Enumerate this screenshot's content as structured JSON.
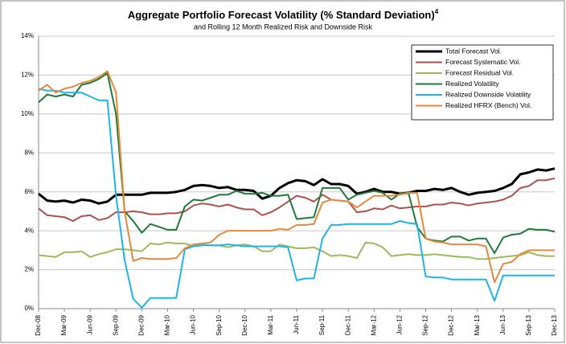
{
  "chart_data": {
    "type": "line",
    "title": "Aggregate Portfolio Forecast Volatility (% Standard Deviation)",
    "title_superscript": "4",
    "subtitle": "and Rolling 12 Month Realized Risk and Downside Risk",
    "categories": [
      "Dec-08",
      null,
      null,
      "Mar-09",
      null,
      null,
      "Jun-09",
      null,
      null,
      "Sep-09",
      null,
      null,
      "Dec-09",
      null,
      null,
      "Mar-10",
      null,
      null,
      "Jun-10",
      null,
      null,
      "Sep-10",
      null,
      null,
      "Dec-10",
      null,
      null,
      "Mar-11",
      null,
      null,
      "Jun-11",
      null,
      null,
      "Sep-11",
      null,
      null,
      "Dec-11",
      null,
      null,
      "Mar-12",
      null,
      null,
      "Jun-12",
      null,
      null,
      "Sep-12",
      null,
      null,
      "Dec-12",
      null,
      null,
      "Mar-13",
      null,
      null,
      "Jun-13",
      null,
      null,
      "Sep-13",
      null,
      null,
      "Dec-13"
    ],
    "ylim": [
      0,
      14
    ],
    "yticks": [
      {
        "value": 0,
        "label": "0%"
      },
      {
        "value": 2,
        "label": "2%"
      },
      {
        "value": 4,
        "label": "4%"
      },
      {
        "value": 6,
        "label": "6%"
      },
      {
        "value": 8,
        "label": "8%"
      },
      {
        "value": 10,
        "label": "10%"
      },
      {
        "value": 12,
        "label": "12%"
      },
      {
        "value": 14,
        "label": "14%"
      }
    ],
    "grid": true,
    "legend": "upper right",
    "series": [
      {
        "name": "Total Forecast Vol.",
        "color": "#000000",
        "values": [
          5.9,
          5.55,
          5.5,
          5.55,
          5.45,
          5.6,
          5.55,
          5.4,
          5.5,
          5.85,
          5.85,
          5.85,
          5.85,
          5.95,
          5.95,
          5.95,
          6.0,
          6.1,
          6.3,
          6.35,
          6.3,
          6.2,
          6.25,
          6.1,
          6.1,
          6.05,
          5.65,
          5.8,
          6.2,
          6.45,
          6.6,
          6.55,
          6.35,
          6.65,
          6.4,
          6.4,
          6.3,
          5.9,
          6.0,
          6.15,
          6.0,
          6.0,
          5.9,
          5.95,
          6.05,
          6.05,
          6.15,
          6.1,
          6.2,
          6.0,
          5.85,
          5.95,
          6.0,
          6.05,
          6.2,
          6.4,
          6.9,
          7.0,
          7.15,
          7.1,
          7.2
        ]
      },
      {
        "name": "Forecast Systematic Vol.",
        "color": "#b0504b",
        "values": [
          5.15,
          4.8,
          4.75,
          4.7,
          4.5,
          4.75,
          4.8,
          4.55,
          4.65,
          4.95,
          4.95,
          5.0,
          4.95,
          4.85,
          4.85,
          4.9,
          4.9,
          5.0,
          5.3,
          5.4,
          5.35,
          5.25,
          5.35,
          5.2,
          5.1,
          5.1,
          4.8,
          4.95,
          5.2,
          5.5,
          5.8,
          5.7,
          5.5,
          5.85,
          5.6,
          5.55,
          5.5,
          4.95,
          5.0,
          5.15,
          5.1,
          5.3,
          5.15,
          5.2,
          5.25,
          5.25,
          5.35,
          5.35,
          5.45,
          5.4,
          5.3,
          5.4,
          5.45,
          5.5,
          5.6,
          5.8,
          6.2,
          6.3,
          6.6,
          6.6,
          6.7
        ]
      },
      {
        "name": "Forecast Residual Vol.",
        "color": "#9bbb59",
        "values": [
          2.75,
          2.7,
          2.65,
          2.9,
          2.9,
          2.95,
          2.65,
          2.8,
          2.9,
          3.05,
          3.05,
          3.0,
          2.95,
          3.35,
          3.3,
          3.4,
          3.35,
          3.35,
          3.2,
          3.3,
          3.25,
          3.25,
          3.15,
          3.25,
          3.3,
          3.2,
          2.95,
          2.95,
          3.3,
          3.2,
          3.1,
          3.1,
          3.15,
          2.95,
          2.7,
          2.75,
          2.7,
          2.6,
          3.4,
          3.35,
          3.15,
          2.7,
          2.75,
          2.8,
          2.75,
          2.75,
          2.8,
          2.75,
          2.7,
          2.65,
          2.65,
          2.55,
          2.55,
          2.6,
          2.65,
          2.7,
          2.75,
          2.9,
          2.75,
          2.7,
          2.7
        ]
      },
      {
        "name": "Realized Volatility",
        "color": "#1e7b3a",
        "values": [
          10.6,
          11.0,
          10.9,
          11.0,
          10.9,
          11.5,
          11.6,
          11.8,
          12.1,
          10.0,
          5.0,
          4.5,
          3.9,
          4.35,
          4.2,
          4.05,
          4.05,
          5.25,
          5.6,
          5.55,
          5.7,
          5.85,
          5.85,
          6.05,
          5.9,
          5.9,
          5.95,
          5.8,
          5.8,
          5.85,
          4.6,
          4.65,
          4.7,
          6.2,
          6.2,
          6.2,
          5.6,
          5.85,
          5.95,
          6.05,
          5.95,
          5.6,
          5.9,
          5.95,
          4.2,
          3.6,
          3.5,
          3.45,
          3.7,
          3.7,
          3.5,
          3.6,
          3.6,
          2.85,
          3.65,
          3.8,
          3.85,
          4.1,
          4.05,
          4.05,
          3.95
        ]
      },
      {
        "name": "Realized Downside Volatility",
        "color": "#1fb4e8",
        "values": [
          11.3,
          11.2,
          11.2,
          11.1,
          11.1,
          11.1,
          10.9,
          10.7,
          10.7,
          5.8,
          2.5,
          0.5,
          0.05,
          0.55,
          0.55,
          0.55,
          0.55,
          3.05,
          3.2,
          3.25,
          3.25,
          3.25,
          3.3,
          3.25,
          3.2,
          3.2,
          3.2,
          3.2,
          3.2,
          3.15,
          1.45,
          1.55,
          1.55,
          3.6,
          4.3,
          4.3,
          4.35,
          4.35,
          4.35,
          4.35,
          4.35,
          4.35,
          4.5,
          4.4,
          4.35,
          1.65,
          1.6,
          1.6,
          1.5,
          1.5,
          1.5,
          1.5,
          1.5,
          0.4,
          1.7,
          1.7,
          1.7,
          1.7,
          1.7,
          1.7,
          1.7
        ]
      },
      {
        "name": "Realized HFRX (Bench) Vol.",
        "color": "#e58a3c",
        "values": [
          11.2,
          11.5,
          11.1,
          11.3,
          11.4,
          11.6,
          11.7,
          11.9,
          12.2,
          11.1,
          5.0,
          2.45,
          2.6,
          2.55,
          2.55,
          2.55,
          2.6,
          3.1,
          3.3,
          3.35,
          3.4,
          3.8,
          4.0,
          4.0,
          4.0,
          4.0,
          4.0,
          4.0,
          4.1,
          4.05,
          4.3,
          4.3,
          4.35,
          5.45,
          5.6,
          5.55,
          5.5,
          5.2,
          5.5,
          5.8,
          5.8,
          5.8,
          5.85,
          5.95,
          5.95,
          3.6,
          3.45,
          3.4,
          3.3,
          3.3,
          3.3,
          3.3,
          3.2,
          1.35,
          2.3,
          2.4,
          2.8,
          3.0,
          3.0,
          3.0,
          3.0
        ]
      }
    ]
  }
}
